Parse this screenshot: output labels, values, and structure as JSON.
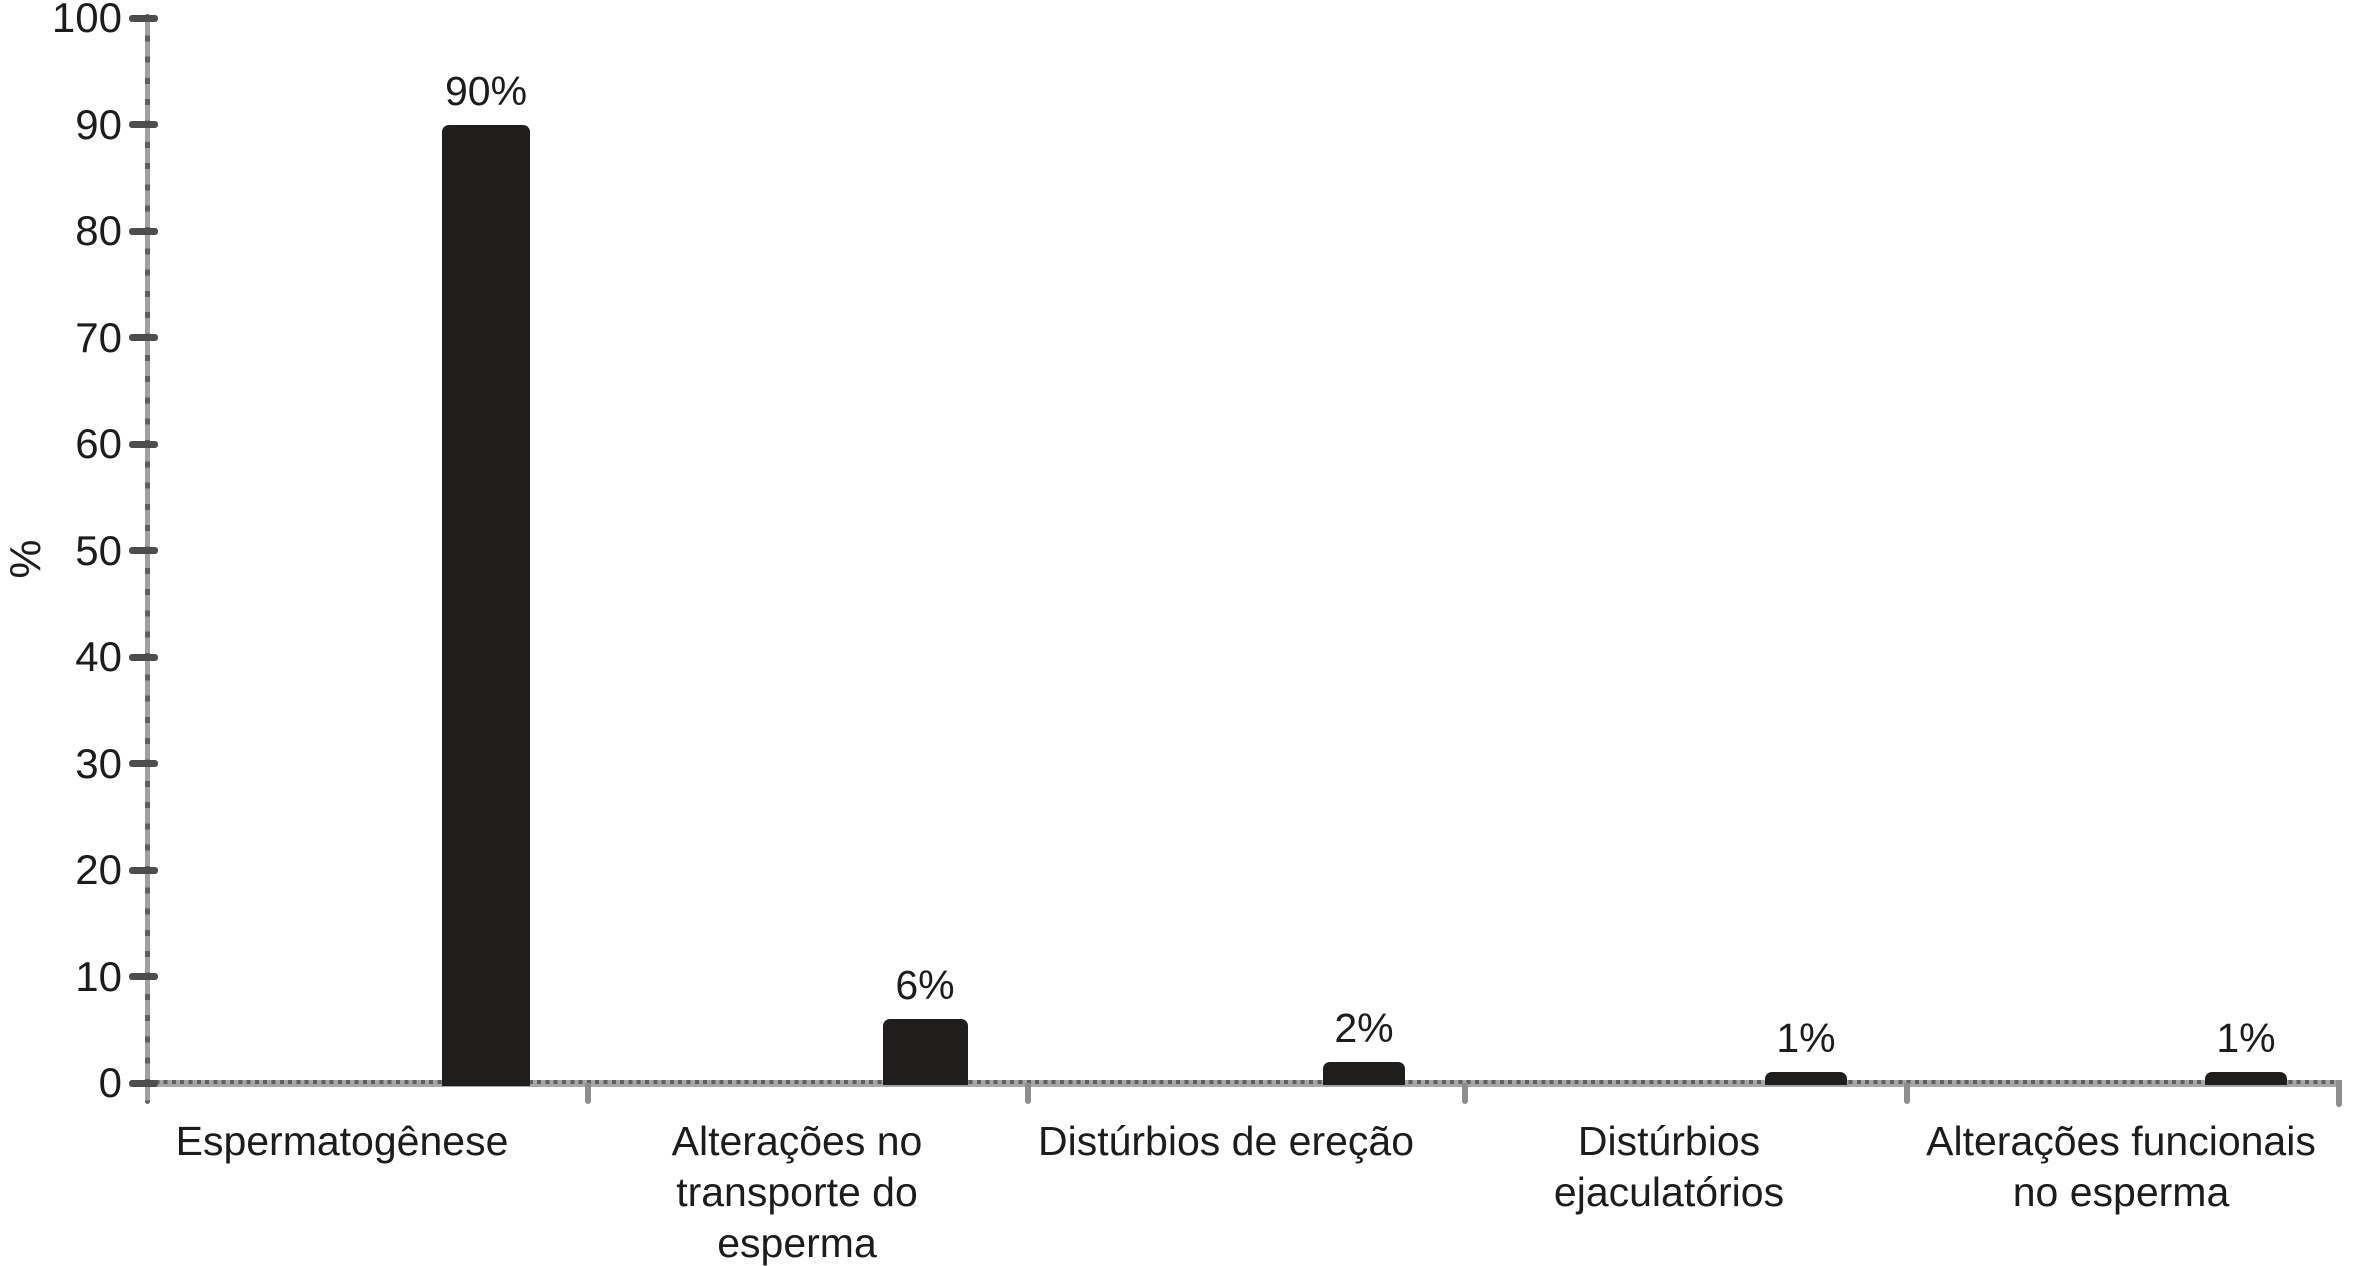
{
  "chart_data": {
    "type": "bar",
    "title": "",
    "xlabel": "",
    "ylabel": "%",
    "ylim": [
      0,
      100
    ],
    "yticks": [
      0,
      10,
      20,
      30,
      40,
      50,
      60,
      70,
      80,
      90,
      100
    ],
    "grid": false,
    "legend": null,
    "categories": [
      "Espermatogênese",
      "Alterações no transporte do esperma",
      "Distúrbios de ereção",
      "Distúrbios ejaculatórios",
      "Alterações funcionais no esperma"
    ],
    "categories_lines": [
      [
        "Espermatogênese"
      ],
      [
        "Alterações no",
        "transporte do",
        "esperma"
      ],
      [
        "Distúrbios de ereção"
      ],
      [
        "Distúrbios",
        "ejaculatórios"
      ],
      [
        "Alterações funcionais",
        "no esperma"
      ]
    ],
    "values": [
      90,
      6,
      2,
      1,
      1
    ],
    "value_labels": [
      "90%",
      "6%",
      "2%",
      "1%",
      "1%"
    ],
    "colors": {
      "bar": "#201d1d",
      "axis": "#a0a0a0",
      "major_tick": "#4d4d4d",
      "text": "#1c1c1c",
      "background": "#ffffff"
    }
  }
}
